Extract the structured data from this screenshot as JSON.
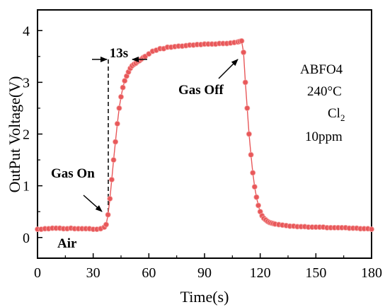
{
  "chart_data": {
    "type": "scatter",
    "xlabel": "Time(s)",
    "ylabel": "OutPut Voltage(V)",
    "xlim": [
      0,
      180
    ],
    "ylim": [
      -0.4,
      4.4
    ],
    "xticks": [
      "0",
      "30",
      "60",
      "90",
      "120",
      "150",
      "180"
    ],
    "yticks": [
      "0",
      "1",
      "2",
      "3",
      "4"
    ],
    "series": [
      {
        "color": "#e8585a",
        "marker": "circle",
        "line": true,
        "x": [
          0,
          2,
          4,
          6,
          8,
          10,
          12,
          14,
          16,
          18,
          20,
          22,
          24,
          26,
          28,
          30,
          32,
          34,
          36,
          37,
          38,
          39,
          40,
          41,
          42,
          43,
          44,
          45,
          46,
          47,
          48,
          49,
          50,
          51,
          52,
          53,
          54,
          55,
          56,
          57,
          58,
          60,
          62,
          64,
          66,
          68,
          70,
          72,
          74,
          76,
          78,
          80,
          82,
          84,
          86,
          88,
          90,
          92,
          94,
          96,
          98,
          100,
          102,
          104,
          106,
          108,
          109,
          110,
          111,
          112,
          113,
          114,
          115,
          116,
          117,
          118,
          119,
          120,
          121,
          122,
          123,
          124,
          125,
          126,
          127,
          128,
          130,
          132,
          134,
          136,
          138,
          140,
          142,
          144,
          146,
          148,
          150,
          152,
          154,
          156,
          158,
          160,
          162,
          164,
          166,
          168,
          170,
          172,
          174,
          176,
          178,
          180
        ],
        "y": [
          0.16,
          0.16,
          0.17,
          0.17,
          0.18,
          0.18,
          0.18,
          0.17,
          0.17,
          0.18,
          0.17,
          0.17,
          0.17,
          0.17,
          0.17,
          0.16,
          0.16,
          0.17,
          0.2,
          0.25,
          0.44,
          0.75,
          1.12,
          1.5,
          1.85,
          2.2,
          2.5,
          2.72,
          2.9,
          3.03,
          3.12,
          3.2,
          3.27,
          3.32,
          3.35,
          3.37,
          3.4,
          3.42,
          3.45,
          3.48,
          3.5,
          3.55,
          3.6,
          3.62,
          3.65,
          3.65,
          3.68,
          3.68,
          3.69,
          3.7,
          3.7,
          3.71,
          3.72,
          3.72,
          3.73,
          3.73,
          3.74,
          3.74,
          3.74,
          3.74,
          3.75,
          3.75,
          3.75,
          3.76,
          3.77,
          3.78,
          3.79,
          3.8,
          3.58,
          3.0,
          2.5,
          2.0,
          1.6,
          1.25,
          0.98,
          0.78,
          0.62,
          0.5,
          0.42,
          0.37,
          0.34,
          0.31,
          0.29,
          0.28,
          0.27,
          0.26,
          0.25,
          0.24,
          0.23,
          0.22,
          0.22,
          0.21,
          0.21,
          0.21,
          0.2,
          0.2,
          0.2,
          0.2,
          0.2,
          0.19,
          0.19,
          0.19,
          0.19,
          0.19,
          0.19,
          0.18,
          0.18,
          0.18,
          0.17,
          0.17,
          0.17,
          0.16
        ]
      }
    ],
    "annotations": {
      "gas_on": "Gas On",
      "gas_off": "Gas Off",
      "air": "Air",
      "response_time": "13s",
      "sample": "ABFO4",
      "temperature": "240°C",
      "gas_main": "Cl",
      "gas_sub": "2",
      "concentration": "10ppm"
    },
    "grid": false,
    "legend": "none"
  }
}
